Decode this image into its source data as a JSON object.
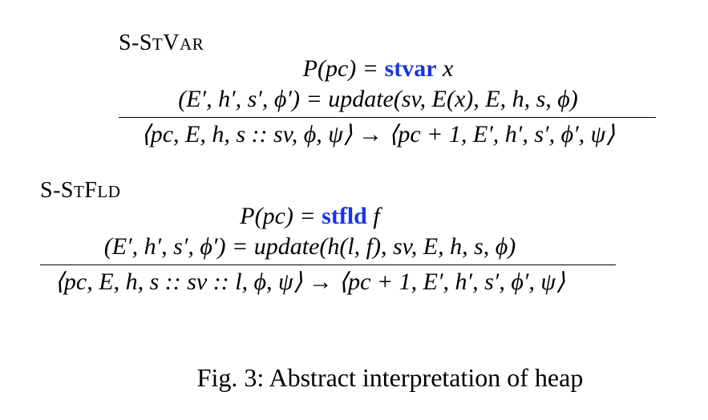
{
  "rules": [
    {
      "name_parts": [
        {
          "text": "S-S",
          "cls": "sc-big"
        },
        {
          "text": "T",
          "cls": "sc-small"
        },
        {
          "text": "V",
          "cls": "sc-big"
        },
        {
          "text": "AR",
          "cls": "sc-small"
        }
      ],
      "premise1_pre": "P(pc) = ",
      "premise1_kw": "stvar",
      "premise1_post": " x",
      "premise2": "(E′, h′, s′, ϕ′) = update(sv, E(x), E, h, s, ϕ)",
      "conclusion": "⟨pc, E, h, s :: sv, ϕ, ψ⟩ → ⟨pc + 1, E′, h′, s′, ϕ′, ψ⟩"
    },
    {
      "name_parts": [
        {
          "text": "S-S",
          "cls": "sc-big"
        },
        {
          "text": "T",
          "cls": "sc-small"
        },
        {
          "text": "F",
          "cls": "sc-big"
        },
        {
          "text": "LD",
          "cls": "sc-small"
        }
      ],
      "premise1_pre": "P(pc) = ",
      "premise1_kw": "stfld",
      "premise1_post": " f",
      "premise2": "(E′, h′, s′, ϕ′) = update(h(l, f), sv, E, h, s, ϕ)",
      "conclusion": "⟨pc, E, h, s :: sv :: l, ϕ, ψ⟩ → ⟨pc + 1, E′, h′, s′, ϕ′, ψ⟩"
    }
  ],
  "caption": "Fig. 3: Abstract interpretation of heap",
  "colors": {
    "keyword": "#1a35e0",
    "text": "#000000"
  }
}
